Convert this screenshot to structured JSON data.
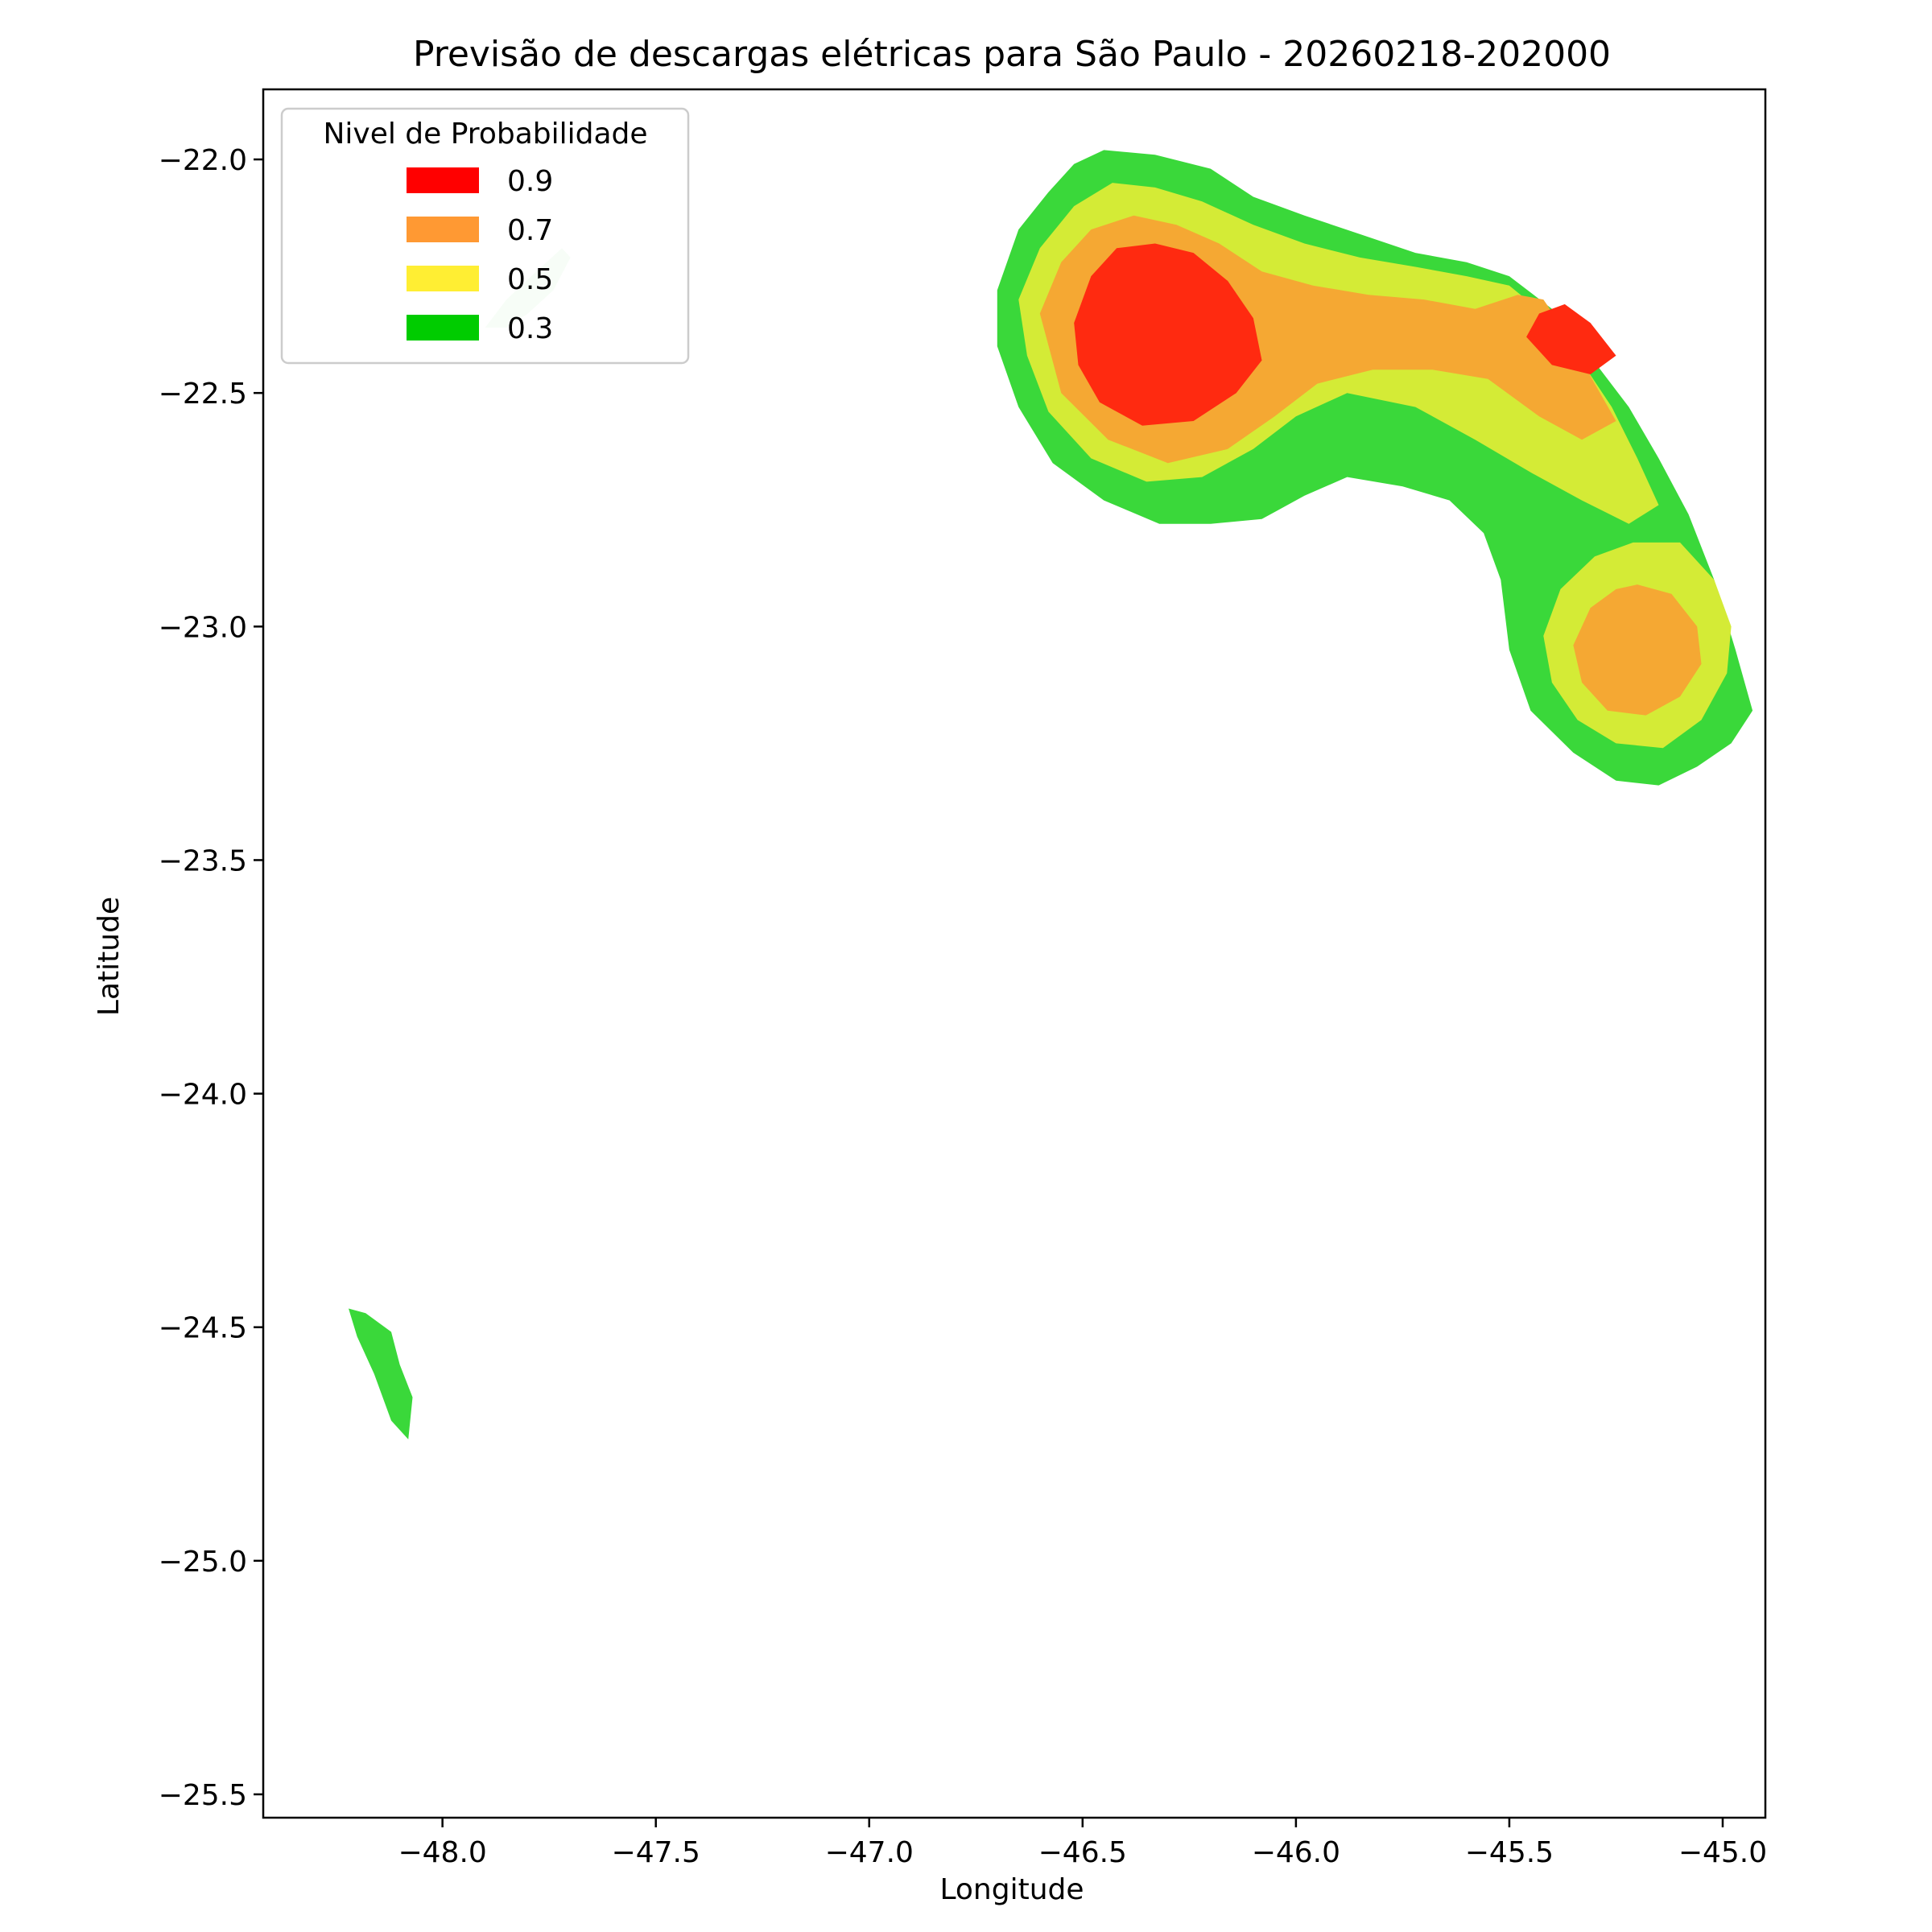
{
  "chart_data": {
    "type": "contour",
    "title": "Previsão de descargas elétricas para São Paulo - 20260218-202000",
    "xlabel": "Longitude",
    "ylabel": "Latitude",
    "xlim": [
      -48.42,
      -44.9
    ],
    "ylim": [
      -25.55,
      -21.85
    ],
    "xticks": [
      -48.0,
      -47.5,
      -47.0,
      -46.5,
      -46.0,
      -45.5,
      -45.0
    ],
    "xtick_labels": [
      "−48.0",
      "−47.5",
      "−47.0",
      "−46.5",
      "−46.0",
      "−45.5",
      "−45.0"
    ],
    "yticks": [
      -22.0,
      -22.5,
      -23.0,
      -23.5,
      -24.0,
      -24.5,
      -25.0,
      -25.5
    ],
    "ytick_labels": [
      "−22.0",
      "−22.5",
      "−23.0",
      "−23.5",
      "−24.0",
      "−24.5",
      "−25.0",
      "−25.5"
    ],
    "grid": false,
    "legend": {
      "title": "Nivel de Probabilidade",
      "placement": "top-left",
      "entries": [
        {
          "label": "0.9",
          "color": "#ff0000"
        },
        {
          "label": "0.7",
          "color": "#ff9933"
        },
        {
          "label": "0.5",
          "color": "#ffee33"
        },
        {
          "label": "0.3",
          "color": "#00cc00"
        }
      ]
    },
    "levels": [
      {
        "level": 0.3,
        "color": "#3ad83a",
        "regions": [
          [
            [
              -46.7,
              -22.28
            ],
            [
              -46.65,
              -22.15
            ],
            [
              -46.58,
              -22.07
            ],
            [
              -46.52,
              -22.01
            ],
            [
              -46.45,
              -21.98
            ],
            [
              -46.33,
              -21.99
            ],
            [
              -46.2,
              -22.02
            ],
            [
              -46.1,
              -22.08
            ],
            [
              -45.98,
              -22.12
            ],
            [
              -45.85,
              -22.16
            ],
            [
              -45.72,
              -22.2
            ],
            [
              -45.6,
              -22.22
            ],
            [
              -45.5,
              -22.25
            ],
            [
              -45.4,
              -22.32
            ],
            [
              -45.32,
              -22.41
            ],
            [
              -45.22,
              -22.53
            ],
            [
              -45.15,
              -22.64
            ],
            [
              -45.08,
              -22.76
            ],
            [
              -45.02,
              -22.9
            ],
            [
              -44.97,
              -23.05
            ],
            [
              -44.93,
              -23.18
            ],
            [
              -44.98,
              -23.25
            ],
            [
              -45.06,
              -23.3
            ],
            [
              -45.15,
              -23.34
            ],
            [
              -45.25,
              -23.33
            ],
            [
              -45.35,
              -23.27
            ],
            [
              -45.45,
              -23.18
            ],
            [
              -45.5,
              -23.05
            ],
            [
              -45.52,
              -22.9
            ],
            [
              -45.56,
              -22.8
            ],
            [
              -45.64,
              -22.73
            ],
            [
              -45.75,
              -22.7
            ],
            [
              -45.88,
              -22.68
            ],
            [
              -45.98,
              -22.72
            ],
            [
              -46.08,
              -22.77
            ],
            [
              -46.2,
              -22.78
            ],
            [
              -46.32,
              -22.78
            ],
            [
              -46.45,
              -22.73
            ],
            [
              -46.57,
              -22.65
            ],
            [
              -46.65,
              -22.53
            ],
            [
              -46.7,
              -22.4
            ]
          ],
          [
            [
              -48.22,
              -24.46
            ],
            [
              -48.18,
              -24.47
            ],
            [
              -48.12,
              -24.51
            ],
            [
              -48.1,
              -24.58
            ],
            [
              -48.07,
              -24.65
            ],
            [
              -48.08,
              -24.74
            ],
            [
              -48.12,
              -24.7
            ],
            [
              -48.16,
              -24.6
            ],
            [
              -48.2,
              -24.52
            ]
          ]
        ]
      },
      {
        "level": 0.5,
        "color": "#d4eb36",
        "regions": [
          [
            [
              -46.65,
              -22.3
            ],
            [
              -46.6,
              -22.19
            ],
            [
              -46.52,
              -22.1
            ],
            [
              -46.43,
              -22.05
            ],
            [
              -46.33,
              -22.06
            ],
            [
              -46.22,
              -22.09
            ],
            [
              -46.1,
              -22.14
            ],
            [
              -45.98,
              -22.18
            ],
            [
              -45.85,
              -22.21
            ],
            [
              -45.72,
              -22.23
            ],
            [
              -45.6,
              -22.25
            ],
            [
              -45.5,
              -22.27
            ],
            [
              -45.42,
              -22.33
            ],
            [
              -45.34,
              -22.42
            ],
            [
              -45.26,
              -22.53
            ],
            [
              -45.2,
              -22.64
            ],
            [
              -45.15,
              -22.74
            ],
            [
              -45.22,
              -22.78
            ],
            [
              -45.33,
              -22.73
            ],
            [
              -45.45,
              -22.67
            ],
            [
              -45.58,
              -22.6
            ],
            [
              -45.72,
              -22.53
            ],
            [
              -45.88,
              -22.5
            ],
            [
              -46.0,
              -22.55
            ],
            [
              -46.1,
              -22.62
            ],
            [
              -46.22,
              -22.68
            ],
            [
              -46.35,
              -22.69
            ],
            [
              -46.48,
              -22.64
            ],
            [
              -46.58,
              -22.54
            ],
            [
              -46.63,
              -22.42
            ]
          ],
          [
            [
              -45.21,
              -22.82
            ],
            [
              -45.1,
              -22.82
            ],
            [
              -45.02,
              -22.9
            ],
            [
              -44.98,
              -23.0
            ],
            [
              -44.99,
              -23.1
            ],
            [
              -45.05,
              -23.2
            ],
            [
              -45.14,
              -23.26
            ],
            [
              -45.25,
              -23.25
            ],
            [
              -45.34,
              -23.2
            ],
            [
              -45.4,
              -23.12
            ],
            [
              -45.42,
              -23.02
            ],
            [
              -45.38,
              -22.92
            ],
            [
              -45.3,
              -22.85
            ]
          ]
        ]
      },
      {
        "level": 0.7,
        "color": "#f5a833",
        "regions": [
          [
            [
              -46.6,
              -22.33
            ],
            [
              -46.55,
              -22.22
            ],
            [
              -46.48,
              -22.15
            ],
            [
              -46.38,
              -22.12
            ],
            [
              -46.28,
              -22.14
            ],
            [
              -46.18,
              -22.18
            ],
            [
              -46.08,
              -22.24
            ],
            [
              -45.96,
              -22.27
            ],
            [
              -45.83,
              -22.29
            ],
            [
              -45.7,
              -22.3
            ],
            [
              -45.58,
              -22.32
            ],
            [
              -45.48,
              -22.29
            ],
            [
              -45.42,
              -22.3
            ],
            [
              -45.36,
              -22.38
            ],
            [
              -45.3,
              -22.48
            ],
            [
              -45.25,
              -22.56
            ],
            [
              -45.33,
              -22.6
            ],
            [
              -45.43,
              -22.55
            ],
            [
              -45.55,
              -22.47
            ],
            [
              -45.68,
              -22.45
            ],
            [
              -45.82,
              -22.45
            ],
            [
              -45.95,
              -22.48
            ],
            [
              -46.05,
              -22.55
            ],
            [
              -46.16,
              -22.62
            ],
            [
              -46.3,
              -22.65
            ],
            [
              -46.44,
              -22.6
            ],
            [
              -46.55,
              -22.5
            ]
          ],
          [
            [
              -45.2,
              -22.91
            ],
            [
              -45.12,
              -22.93
            ],
            [
              -45.06,
              -23.0
            ],
            [
              -45.05,
              -23.08
            ],
            [
              -45.1,
              -23.15
            ],
            [
              -45.18,
              -23.19
            ],
            [
              -45.27,
              -23.18
            ],
            [
              -45.33,
              -23.12
            ],
            [
              -45.35,
              -23.04
            ],
            [
              -45.31,
              -22.96
            ],
            [
              -45.25,
              -22.92
            ]
          ]
        ]
      },
      {
        "level": 0.9,
        "color": "#ff2a10",
        "regions": [
          [
            [
              -46.52,
              -22.35
            ],
            [
              -46.48,
              -22.25
            ],
            [
              -46.42,
              -22.19
            ],
            [
              -46.33,
              -22.18
            ],
            [
              -46.24,
              -22.2
            ],
            [
              -46.16,
              -22.26
            ],
            [
              -46.1,
              -22.34
            ],
            [
              -46.08,
              -22.43
            ],
            [
              -46.14,
              -22.5
            ],
            [
              -46.24,
              -22.56
            ],
            [
              -46.36,
              -22.57
            ],
            [
              -46.46,
              -22.52
            ],
            [
              -46.51,
              -22.44
            ]
          ],
          [
            [
              -45.43,
              -22.33
            ],
            [
              -45.37,
              -22.31
            ],
            [
              -45.31,
              -22.35
            ],
            [
              -45.25,
              -22.42
            ],
            [
              -45.31,
              -22.46
            ],
            [
              -45.4,
              -22.44
            ],
            [
              -45.46,
              -22.38
            ]
          ]
        ]
      },
      {
        "level": 0.3,
        "color": "#d6f5d6",
        "regions": [
          [
            [
              -47.9,
              -22.36
            ],
            [
              -47.85,
              -22.3
            ],
            [
              -47.78,
              -22.24
            ],
            [
              -47.72,
              -22.19
            ],
            [
              -47.7,
              -22.21
            ],
            [
              -47.74,
              -22.28
            ],
            [
              -47.8,
              -22.33
            ],
            [
              -47.85,
              -22.36
            ]
          ]
        ]
      }
    ]
  }
}
